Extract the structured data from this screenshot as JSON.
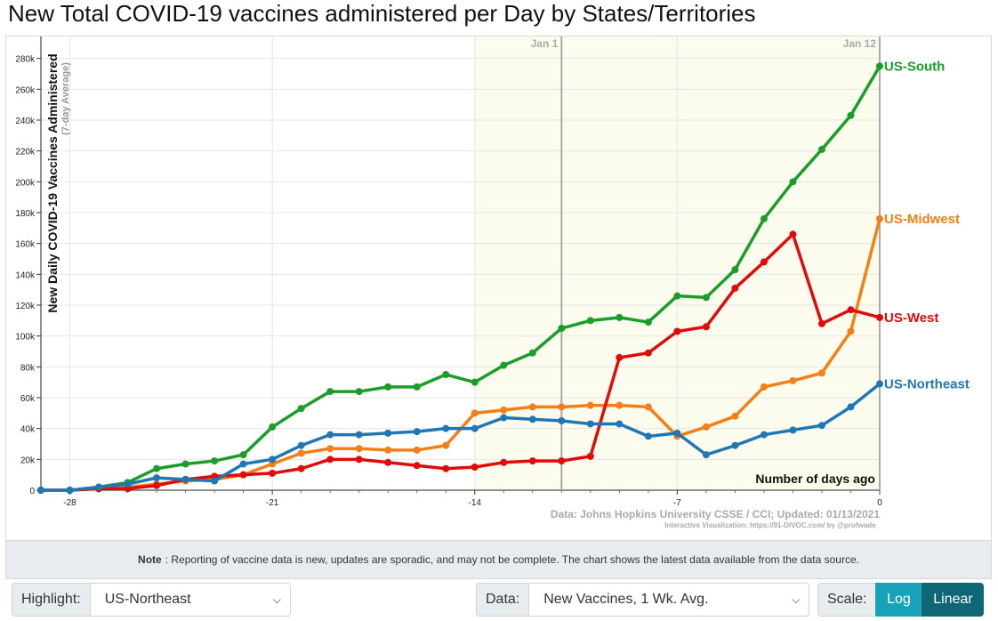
{
  "page": {
    "title": "New Total COVID-19 vaccines administered per Day by States/Territories"
  },
  "note": {
    "label": "Note",
    "text": ": Reporting of vaccine data is new, updates are sporadic, and may not be complete. The chart shows the latest data available from the data source."
  },
  "controls": {
    "highlight_label": "Highlight:",
    "highlight_value": "US-Northeast",
    "data_label": "Data:",
    "data_value": "New Vaccines, 1 Wk. Avg.",
    "scale_label": "Scale:",
    "scale_log": "Log",
    "scale_linear": "Linear",
    "scale_selected": "Linear"
  },
  "colors": {
    "US-South": "#1a9e29",
    "US-Midwest": "#f57f17",
    "US-West": "#e00b0b",
    "US-Northeast": "#1f77b4",
    "highlight_bg": "#fbfcee"
  },
  "chart_data": {
    "type": "line",
    "ylabel": "New Daily COVID-19 Vaccines Administered",
    "ylabel_sub": "(7-day Average)",
    "xlabel": "Number of days ago",
    "source": "Data: Johns Hopkins University CSSE / CCI; Updated: 01/13/2021",
    "credit": "Interactive Visualization: https://91-DIVOC.com/ by @profwade_",
    "xlim": [
      -29,
      0
    ],
    "ylim": [
      0,
      285000
    ],
    "x_ticks": [
      -28,
      -21,
      -14,
      -7,
      0
    ],
    "y_ticks": [
      0,
      20000,
      40000,
      60000,
      80000,
      100000,
      120000,
      140000,
      160000,
      180000,
      200000,
      220000,
      240000,
      260000,
      280000
    ],
    "y_tick_labels": [
      "0",
      "20k",
      "40k",
      "60k",
      "80k",
      "100k",
      "120k",
      "140k",
      "160k",
      "180k",
      "200k",
      "220k",
      "240k",
      "260k",
      "280k"
    ],
    "markers": [
      {
        "label": "Jan 1",
        "x": -11
      },
      {
        "label": "Jan 12",
        "x": 0
      }
    ],
    "x": [
      -29,
      -28,
      -27,
      -26,
      -25,
      -24,
      -23,
      -22,
      -21,
      -20,
      -19,
      -18,
      -17,
      -16,
      -15,
      -14,
      -13,
      -12,
      -11,
      -10,
      -9,
      -8,
      -7,
      -6,
      -5,
      -4,
      -3,
      -2,
      -1,
      0
    ],
    "series": [
      {
        "name": "US-South",
        "values": [
          0,
          0,
          2000,
          5000,
          14000,
          17000,
          19000,
          23000,
          41000,
          53000,
          64000,
          64000,
          67000,
          67000,
          75000,
          70000,
          81000,
          89000,
          105000,
          110000,
          112000,
          109000,
          126000,
          125000,
          143000,
          176000,
          200000,
          221000,
          243000,
          275000
        ]
      },
      {
        "name": "US-Midwest",
        "values": [
          0,
          0,
          1000,
          2000,
          4000,
          6000,
          7000,
          10000,
          17000,
          24000,
          27000,
          27000,
          26000,
          26000,
          29000,
          50000,
          52000,
          54000,
          54000,
          55000,
          55000,
          54000,
          35000,
          41000,
          48000,
          67000,
          71000,
          76000,
          103000,
          176000
        ]
      },
      {
        "name": "US-West",
        "values": [
          0,
          0,
          1000,
          1000,
          3000,
          7000,
          9000,
          10000,
          11000,
          14000,
          20000,
          20000,
          18000,
          16000,
          14000,
          15000,
          18000,
          19000,
          19000,
          22000,
          86000,
          89000,
          103000,
          106000,
          131000,
          148000,
          166000,
          108000,
          117000,
          112000
        ]
      },
      {
        "name": "US-Northeast",
        "values": [
          0,
          0,
          2000,
          4000,
          8000,
          7000,
          6000,
          17000,
          20000,
          29000,
          36000,
          36000,
          37000,
          38000,
          40000,
          40000,
          47000,
          46000,
          45000,
          43000,
          43000,
          35000,
          37000,
          23000,
          29000,
          36000,
          39000,
          42000,
          54000,
          69000
        ]
      }
    ]
  }
}
